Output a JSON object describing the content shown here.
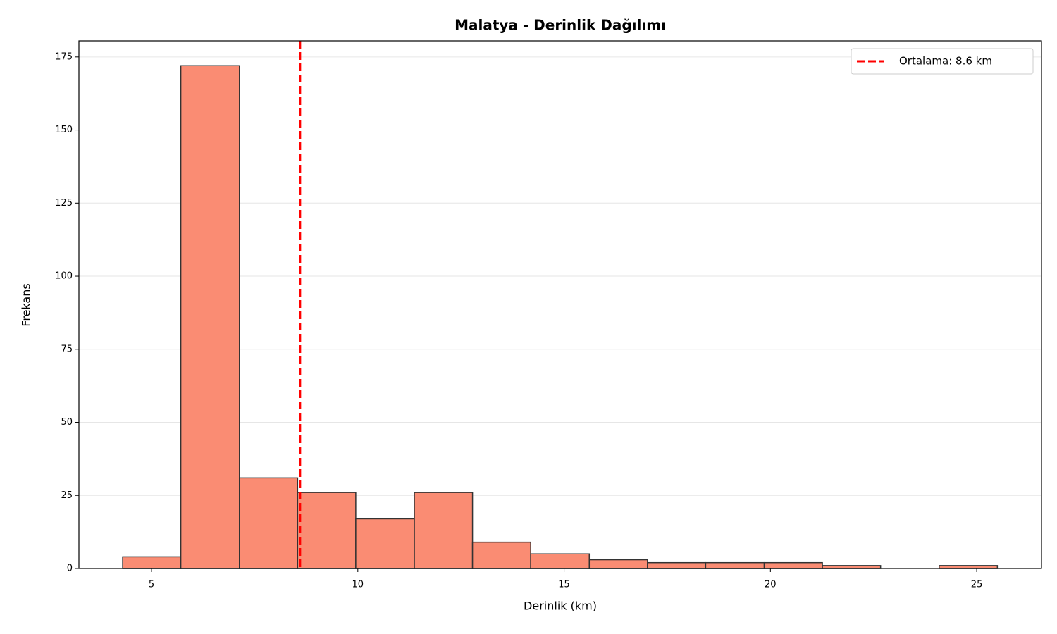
{
  "chart_data": {
    "type": "histogram",
    "title": "Malatya - Derinlik Dağılımı",
    "xlabel": "Derinlik (km)",
    "ylabel": "Frekans",
    "bins": [
      4.3,
      5.71,
      7.13,
      8.54,
      9.95,
      11.37,
      12.78,
      14.19,
      15.61,
      17.02,
      18.43,
      19.85,
      21.26,
      22.67,
      24.09,
      25.5
    ],
    "counts": [
      4,
      172,
      31,
      26,
      17,
      26,
      9,
      5,
      3,
      2,
      2,
      2,
      1,
      0,
      1
    ],
    "color": "#fa8c73",
    "edgecolor": "#333333",
    "xlim": [
      3.24,
      26.57
    ],
    "ylim": [
      0,
      180.5
    ],
    "xticks": [
      5,
      10,
      15,
      20,
      25
    ],
    "yticks": [
      0,
      25,
      50,
      75,
      100,
      125,
      150,
      175
    ],
    "grid": true,
    "mean_line": {
      "value": 8.6,
      "label": "Ortalama: 8.6 km",
      "color": "#ff0000"
    },
    "legend": "upper right"
  }
}
